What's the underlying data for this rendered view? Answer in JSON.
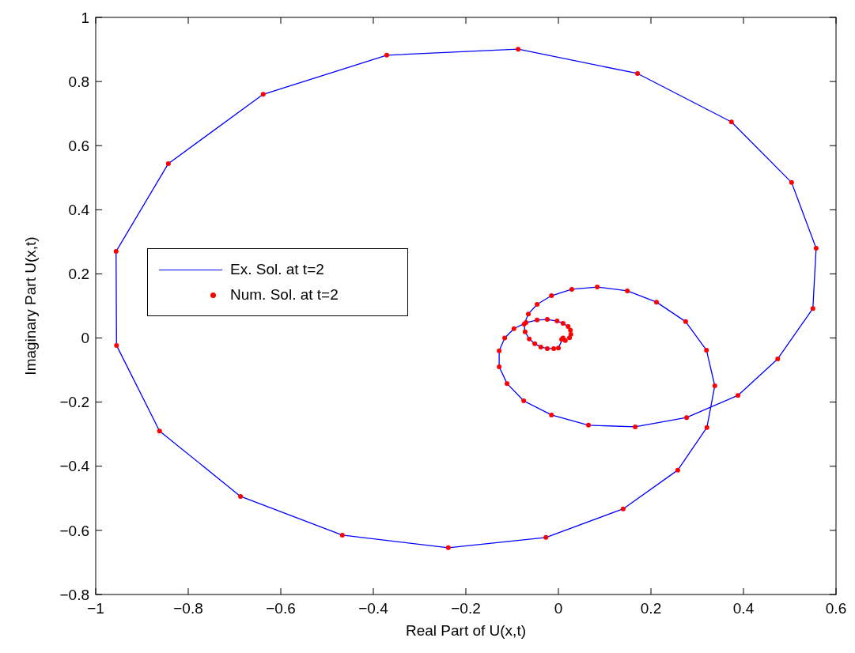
{
  "chart_data": {
    "type": "line",
    "xlabel": "Real Part of U(x,t)",
    "ylabel": "Imaginary Part U(x,t)",
    "xlim": [
      -1,
      0.6
    ],
    "xticks": [
      -1,
      -0.8,
      -0.6,
      -0.4,
      -0.2,
      0,
      0.2,
      0.4,
      0.6
    ],
    "ylim": [
      -0.8,
      1
    ],
    "yticks": [
      -0.8,
      -0.6,
      -0.4,
      -0.2,
      0,
      0.2,
      0.4,
      0.6,
      0.8,
      1
    ],
    "grid": false,
    "legend": "left",
    "line_style": "solid",
    "x": [
      0.01,
      0,
      -0.01,
      -0.024,
      -0.038,
      -0.051,
      -0.063,
      -0.072,
      -0.074,
      -0.065,
      -0.046,
      -0.015,
      0.029,
      0.084,
      0.149,
      0.212,
      0.275,
      0.32,
      0.338,
      0.321,
      0.258,
      0.14,
      -0.027,
      -0.238,
      -0.467,
      -0.687,
      -0.862,
      -0.955,
      -0.956,
      -0.843,
      -0.638,
      -0.371,
      -0.087,
      0.171,
      0.374,
      0.504,
      0.557,
      0.55,
      0.474,
      0.388,
      0.277,
      0.166,
      0.065,
      -0.015,
      -0.075,
      -0.111,
      -0.128,
      -0.128,
      -0.116,
      -0.096,
      -0.07,
      -0.046,
      -0.024,
      -0.003,
      0.01,
      0.021,
      0.026,
      0.027,
      0.024,
      0.015,
      0.007
    ],
    "series": [
      {
        "name": "Ex. Sol. at t=2",
        "marker": "none",
        "color": "#0000ff",
        "values": [
          0,
          -0.031,
          -0.033,
          -0.033,
          -0.028,
          -0.018,
          -0.003,
          0.019,
          0.043,
          0.075,
          0.105,
          0.132,
          0.152,
          0.159,
          0.147,
          0.112,
          0.051,
          -0.038,
          -0.149,
          -0.279,
          -0.412,
          -0.533,
          -0.622,
          -0.654,
          -0.615,
          -0.494,
          -0.29,
          -0.023,
          0.27,
          0.544,
          0.76,
          0.882,
          0.901,
          0.825,
          0.674,
          0.485,
          0.28,
          0.092,
          -0.065,
          -0.179,
          -0.248,
          -0.277,
          -0.272,
          -0.24,
          -0.196,
          -0.142,
          -0.09,
          -0.04,
          0,
          0.029,
          0.048,
          0.056,
          0.058,
          0.053,
          0.046,
          0.036,
          0.024,
          null,
          null,
          null,
          null
        ]
      },
      {
        "name": "Num. Sol. at t=2",
        "type": "scatter",
        "marker": "circle",
        "color": "#ff0000",
        "values": [
          0,
          -0.031,
          -0.033,
          -0.033,
          -0.028,
          -0.018,
          -0.003,
          0.019,
          0.043,
          0.075,
          0.105,
          0.132,
          0.152,
          0.159,
          0.147,
          0.112,
          0.051,
          -0.038,
          -0.149,
          -0.279,
          -0.412,
          -0.533,
          -0.622,
          -0.654,
          -0.615,
          -0.494,
          -0.29,
          -0.023,
          0.27,
          0.544,
          0.76,
          0.882,
          0.901,
          0.825,
          0.674,
          0.485,
          0.28,
          0.092,
          -0.065,
          -0.179,
          -0.248,
          -0.277,
          -0.272,
          -0.24,
          -0.196,
          -0.142,
          -0.09,
          -0.04,
          0,
          0.029,
          0.048,
          0.056,
          0.058,
          0.053,
          0.046,
          0.036,
          0.024,
          0.011,
          0.001,
          -0.008,
          -0.004
        ]
      }
    ]
  }
}
